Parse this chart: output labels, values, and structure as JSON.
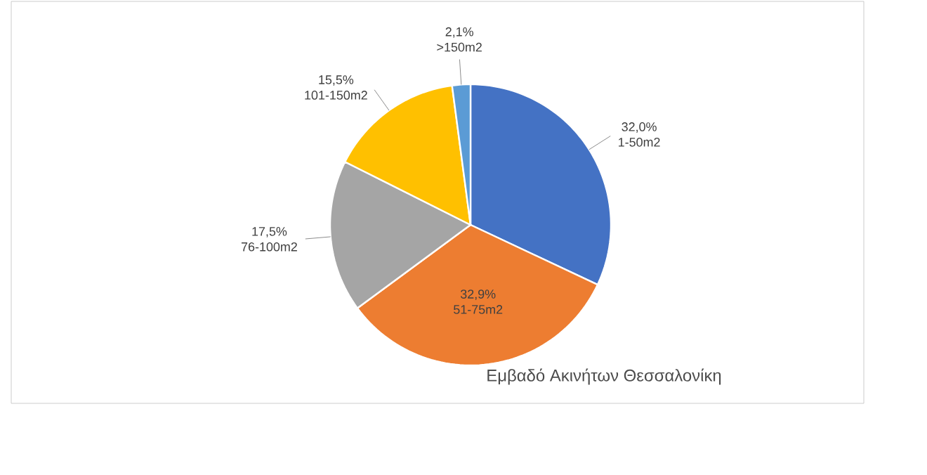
{
  "chart_data": {
    "type": "pie",
    "title": "Εμβαδό Ακινήτων Θεσσαλονίκη",
    "categories": [
      "1-50m2",
      "51-75m2",
      "76-100m2",
      "101-150m2",
      ">150m2"
    ],
    "values": [
      32.0,
      32.9,
      17.5,
      15.5,
      2.1
    ],
    "value_labels": [
      "32,0%",
      "32,9%",
      "17,5%",
      "15,5%",
      "2,1%"
    ],
    "colors": [
      "#4472c4",
      "#ed7d31",
      "#a5a5a5",
      "#ffc000",
      "#5b9bd5"
    ]
  }
}
